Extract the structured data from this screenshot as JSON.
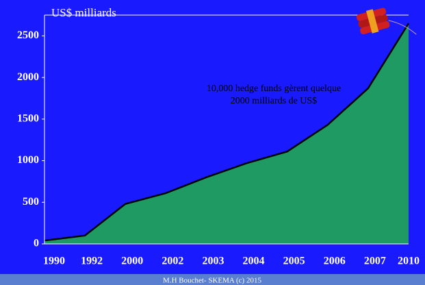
{
  "chart_data": {
    "type": "area",
    "y_axis_label": "US$ milliards",
    "annotation": [
      "10,000 hedge funds gèrent quelque",
      "2000 milliards de US$"
    ],
    "footer": "M.H Bouchet- SKEMA (c) 2015",
    "categories": [
      "1990",
      "1992",
      "2000",
      "2002",
      "2003",
      "2004",
      "2005",
      "2006",
      "2007",
      "2010"
    ],
    "values": [
      40,
      100,
      480,
      610,
      800,
      970,
      1110,
      1430,
      1870,
      2650
    ],
    "color": "#1e9a62",
    "ylim": [
      0,
      2750
    ],
    "yticks": [
      0,
      500,
      1000,
      1500,
      2000,
      2500
    ]
  }
}
